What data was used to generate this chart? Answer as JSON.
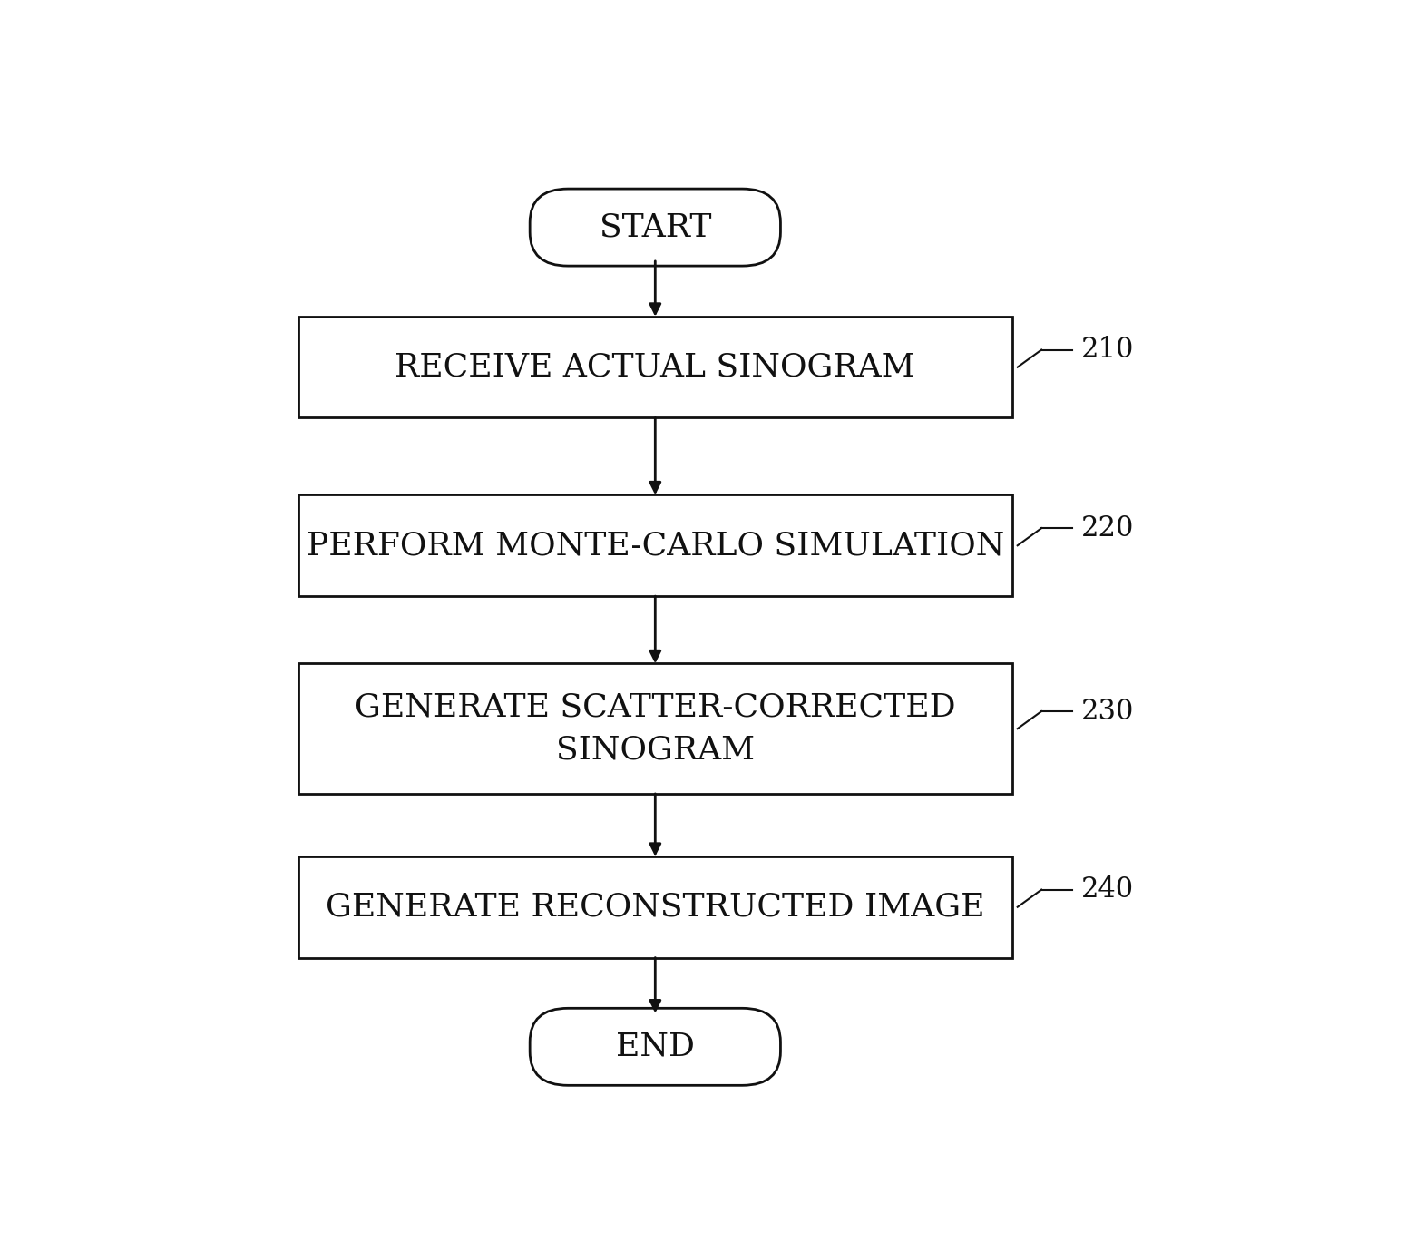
{
  "background_color": "#ffffff",
  "fig_width": 15.5,
  "fig_height": 13.8,
  "start_label": "START",
  "end_label": "END",
  "boxes": [
    {
      "label": "RECEIVE ACTUAL SINOGRAM",
      "ref": "210",
      "multiline": false
    },
    {
      "label": "PERFORM MONTE-CARLO SIMULATION",
      "ref": "220",
      "multiline": false
    },
    {
      "label": "GENERATE SCATTER-CORRECTED\nSINOGRAM",
      "ref": "230",
      "multiline": true
    },
    {
      "label": "GENERATE RECONSTRUCTED IMAGE",
      "ref": "240",
      "multiline": false
    }
  ],
  "text_color": "#111111",
  "box_edge_color": "#111111",
  "box_face_color": "#ffffff",
  "arrow_color": "#111111",
  "terminal_face_color": "#ffffff",
  "terminal_edge_color": "#111111",
  "font_size_terminal": 26,
  "font_size_box": 26,
  "font_size_ref": 22,
  "linewidth": 2.0
}
